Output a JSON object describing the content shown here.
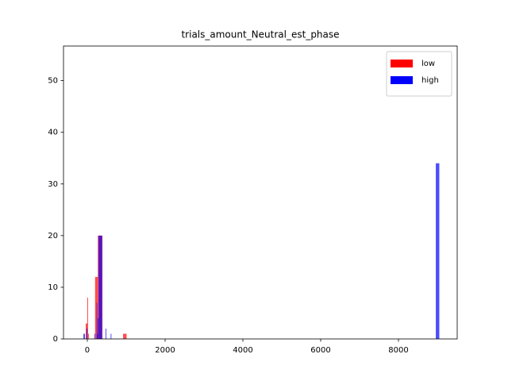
{
  "chart_data": {
    "type": "histogram",
    "title": "trials_amount_Neutral_est_phase",
    "series": [
      {
        "name": "low",
        "color": "#ff0000",
        "bins": [
          -40,
          0,
          20,
          40,
          200,
          270,
          390,
          920,
          1010
        ],
        "values": [
          3,
          8,
          1,
          0,
          12,
          20,
          0,
          1
        ]
      },
      {
        "name": "high",
        "color": "#0000ff",
        "bins": [
          -100,
          -60,
          -20,
          0,
          180,
          200,
          240,
          250,
          270,
          290,
          380,
          470,
          490,
          600,
          620,
          8960,
          9050
        ],
        "values": [
          1,
          0,
          2,
          0,
          1,
          0,
          7,
          1,
          4,
          20,
          0,
          2,
          0,
          1,
          0,
          34
        ]
      }
    ],
    "alpha": 0.7,
    "xlim": [
      -612,
      9510
    ],
    "xticks": [
      0,
      2000,
      4000,
      6000,
      8000
    ],
    "ylim": [
      0,
      56.7
    ],
    "yticks": [
      0,
      10,
      20,
      30,
      40,
      50
    ],
    "legend": "upper right"
  }
}
